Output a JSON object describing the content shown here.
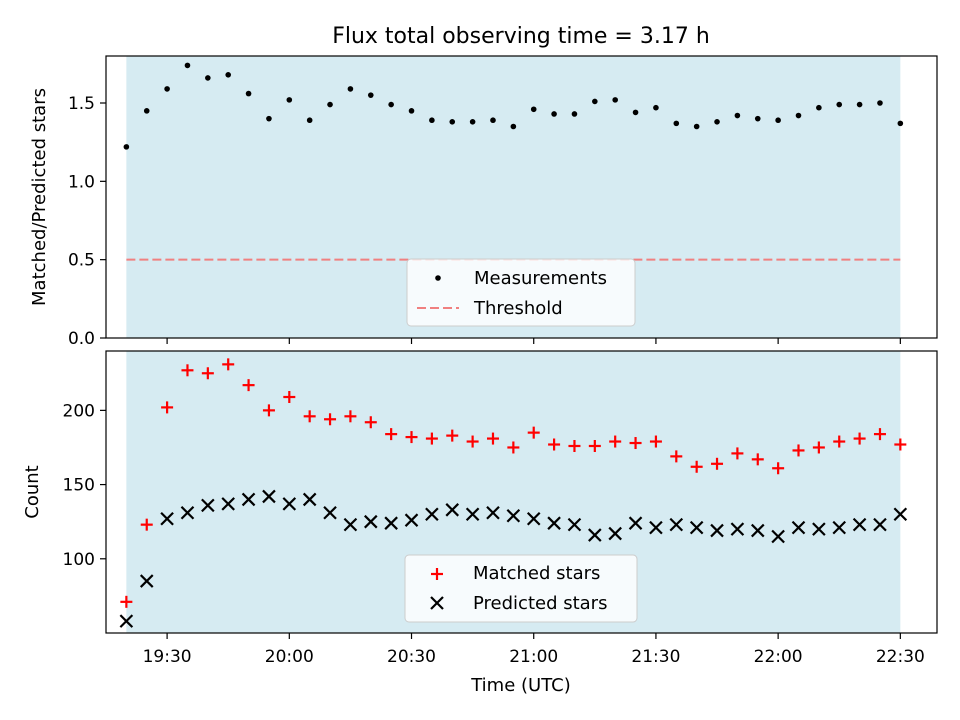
{
  "figure": {
    "title": "Flux total observing time = 3.17 h",
    "xlabel": "Time (UTC)",
    "x_ticks": [
      "19:30",
      "20:00",
      "20:30",
      "21:00",
      "21:30",
      "22:00",
      "22:30"
    ]
  },
  "chart_data": [
    {
      "type": "scatter",
      "ylabel": "Matched/Predicted stars",
      "xlim": [
        "19:15",
        "22:39"
      ],
      "ylim": [
        0,
        1.8
      ],
      "y_ticks": [
        "0.0",
        "0.5",
        "1.0",
        "1.5"
      ],
      "shaded_span": [
        "19:20",
        "22:30"
      ],
      "shade_color": "#add8e6",
      "legend": {
        "position": "bottom-center"
      },
      "x": [
        "19:20",
        "19:25",
        "19:30",
        "19:35",
        "19:40",
        "19:45",
        "19:50",
        "19:55",
        "20:00",
        "20:05",
        "20:10",
        "20:15",
        "20:20",
        "20:25",
        "20:30",
        "20:35",
        "20:40",
        "20:45",
        "20:50",
        "20:55",
        "21:00",
        "21:05",
        "21:10",
        "21:15",
        "21:20",
        "21:25",
        "21:30",
        "21:35",
        "21:40",
        "21:45",
        "21:50",
        "21:55",
        "22:00",
        "22:05",
        "22:10",
        "22:15",
        "22:20",
        "22:25",
        "22:30"
      ],
      "series": [
        {
          "name": "Measurements",
          "marker": "dot",
          "color": "#000000",
          "values": [
            1.22,
            1.45,
            1.59,
            1.74,
            1.66,
            1.68,
            1.56,
            1.4,
            1.52,
            1.39,
            1.49,
            1.59,
            1.55,
            1.49,
            1.45,
            1.39,
            1.38,
            1.38,
            1.39,
            1.35,
            1.46,
            1.43,
            1.43,
            1.51,
            1.52,
            1.44,
            1.47,
            1.37,
            1.35,
            1.38,
            1.42,
            1.4,
            1.39,
            1.42,
            1.47,
            1.49,
            1.49,
            1.5,
            1.37
          ]
        },
        {
          "name": "Threshold",
          "marker": "dashed-line",
          "color": "#f08080",
          "values": [
            0.5
          ]
        }
      ]
    },
    {
      "type": "scatter",
      "ylabel": "Count",
      "xlim": [
        "19:15",
        "22:39"
      ],
      "ylim": [
        50,
        240
      ],
      "y_ticks": [
        "100",
        "150",
        "200"
      ],
      "shaded_span": [
        "19:20",
        "22:30"
      ],
      "shade_color": "#add8e6",
      "legend": {
        "position": "bottom-center"
      },
      "x": [
        "19:20",
        "19:25",
        "19:30",
        "19:35",
        "19:40",
        "19:45",
        "19:50",
        "19:55",
        "20:00",
        "20:05",
        "20:10",
        "20:15",
        "20:20",
        "20:25",
        "20:30",
        "20:35",
        "20:40",
        "20:45",
        "20:50",
        "20:55",
        "21:00",
        "21:05",
        "21:10",
        "21:15",
        "21:20",
        "21:25",
        "21:30",
        "21:35",
        "21:40",
        "21:45",
        "21:50",
        "21:55",
        "22:00",
        "22:05",
        "22:10",
        "22:15",
        "22:20",
        "22:25",
        "22:30"
      ],
      "series": [
        {
          "name": "Matched stars",
          "marker": "plus",
          "color": "#ff0000",
          "values": [
            71,
            123,
            202,
            227,
            225,
            231,
            217,
            200,
            209,
            196,
            194,
            196,
            192,
            184,
            182,
            181,
            183,
            179,
            181,
            175,
            185,
            177,
            176,
            176,
            179,
            178,
            179,
            169,
            162,
            164,
            171,
            167,
            161,
            173,
            175,
            179,
            181,
            184,
            177
          ]
        },
        {
          "name": "Predicted stars",
          "marker": "x",
          "color": "#000000",
          "values": [
            58,
            85,
            127,
            131,
            136,
            137,
            140,
            142,
            137,
            140,
            131,
            123,
            125,
            124,
            126,
            130,
            133,
            130,
            131,
            129,
            127,
            124,
            123,
            116,
            117,
            124,
            121,
            123,
            121,
            119,
            120,
            119,
            115,
            121,
            120,
            121,
            123,
            123,
            130
          ]
        }
      ]
    }
  ]
}
